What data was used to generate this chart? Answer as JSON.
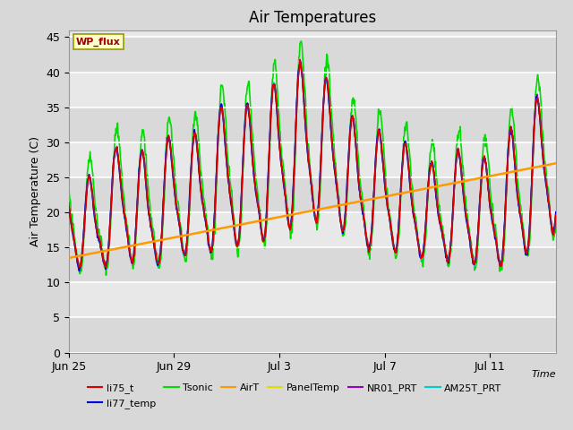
{
  "title": "Air Temperatures",
  "xlabel": "Time",
  "ylabel": "Air Temperature (C)",
  "ylim": [
    0,
    46
  ],
  "yticks": [
    0,
    5,
    10,
    15,
    20,
    25,
    30,
    35,
    40,
    45
  ],
  "date_labels": [
    "Jun 25",
    "Jun 29",
    "Jul 3",
    "Jul 7",
    "Jul 11"
  ],
  "date_ticks_days": [
    0,
    4,
    8,
    12,
    16
  ],
  "total_days": 18.5,
  "annotation_text": "WP_flux",
  "legend_entries": [
    {
      "label": "li75_t",
      "color": "#dd0000"
    },
    {
      "label": "li77_temp",
      "color": "#0000dd"
    },
    {
      "label": "Tsonic",
      "color": "#00dd00"
    },
    {
      "label": "AirT",
      "color": "#ff9900"
    },
    {
      "label": "PanelTemp",
      "color": "#dddd00"
    },
    {
      "label": "NR01_PRT",
      "color": "#9900cc"
    },
    {
      "label": "AM25T_PRT",
      "color": "#00cccc"
    }
  ],
  "bg_color": "#d8d8d8",
  "plot_bg": "#e8e8e8",
  "band_color1": "#e8e8e8",
  "band_color2": "#d8d8d8",
  "title_fontsize": 12,
  "axis_fontsize": 9,
  "tick_fontsize": 9,
  "lw": 1.2
}
